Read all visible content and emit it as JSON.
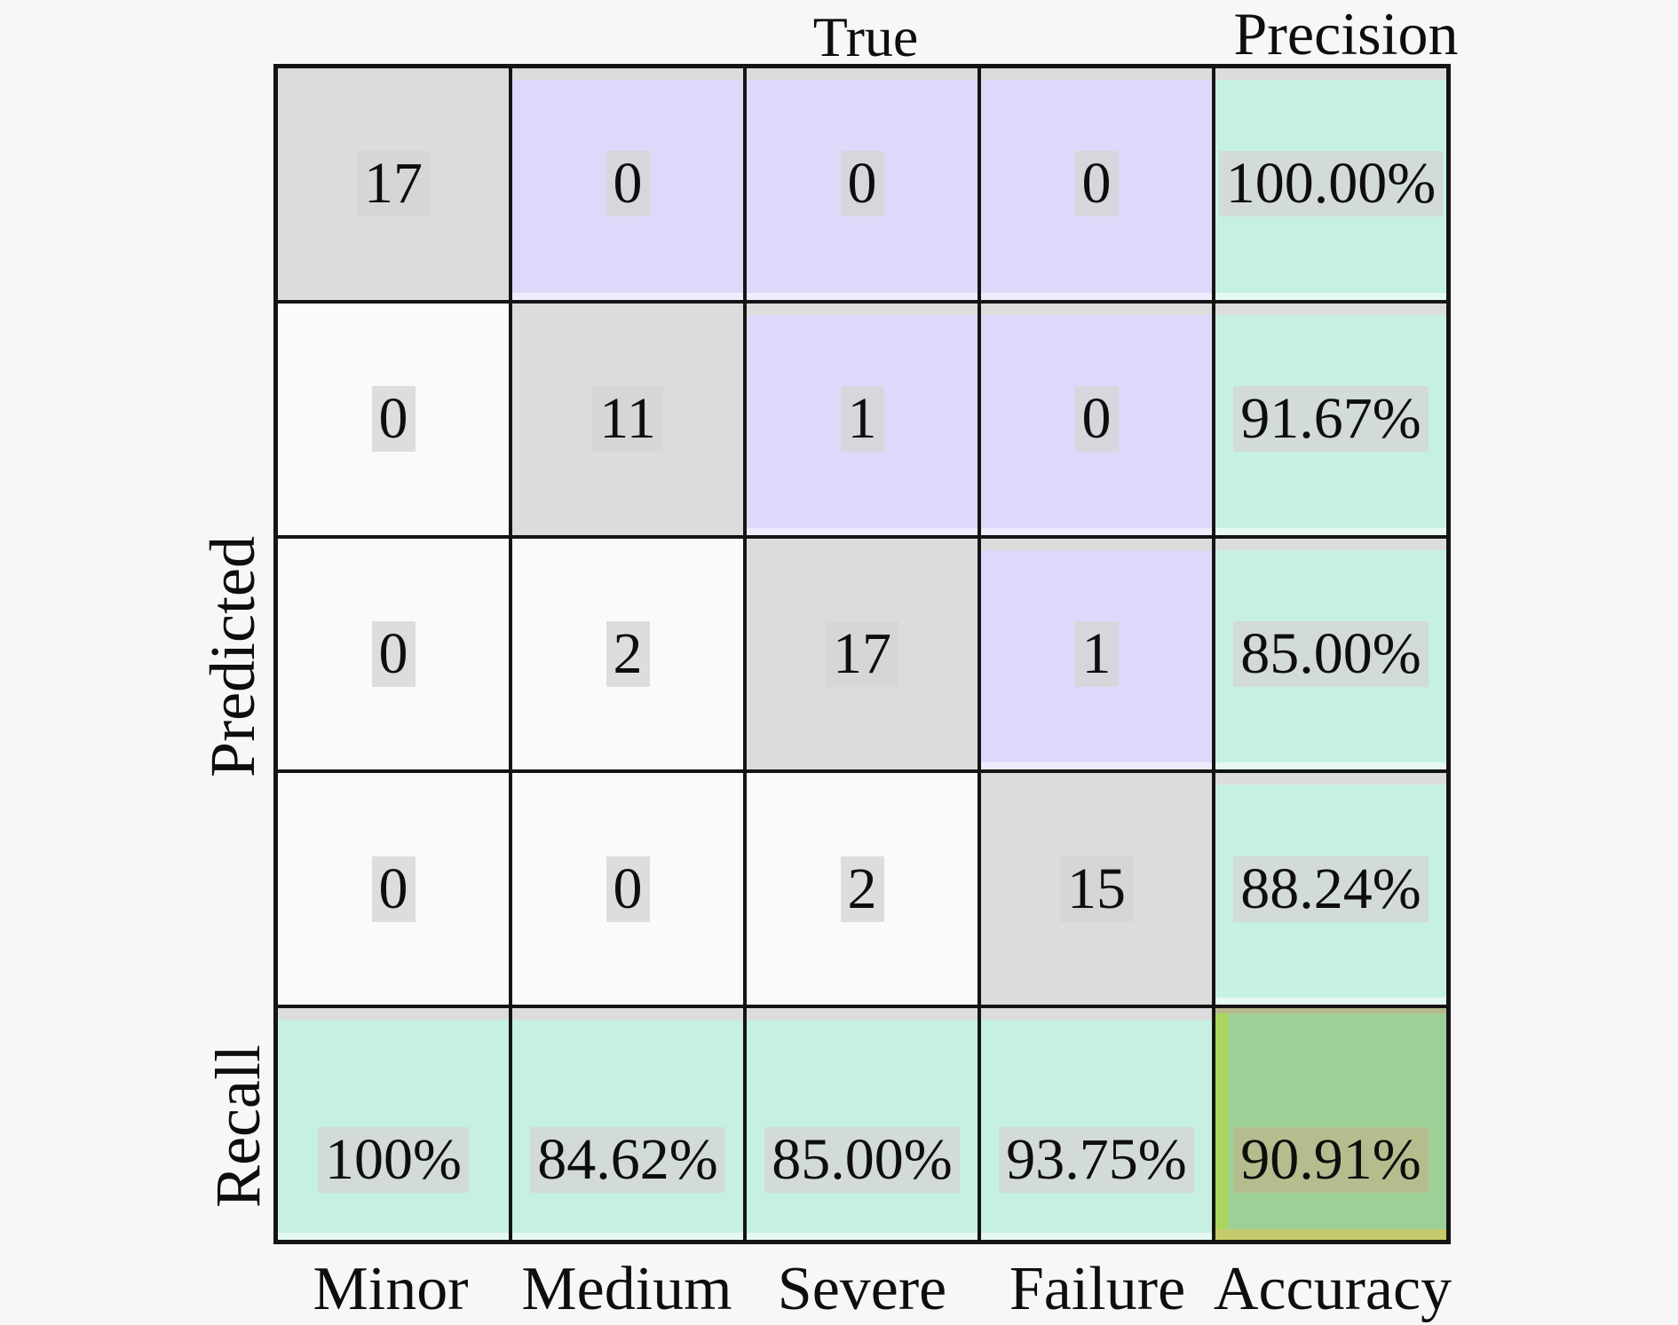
{
  "chart_data": {
    "type": "heatmap",
    "subtype": "confusion-matrix",
    "x_axis_label": "True",
    "y_axis_label": "Predicted",
    "classes": [
      "Minor",
      "Medium",
      "Severe",
      "Failure"
    ],
    "matrix": [
      [
        17,
        0,
        0,
        0
      ],
      [
        0,
        11,
        1,
        0
      ],
      [
        0,
        2,
        17,
        1
      ],
      [
        0,
        0,
        2,
        15
      ]
    ],
    "precision_label": "Precision",
    "precision": [
      "100.00%",
      "91.67%",
      "85.00%",
      "88.24%"
    ],
    "recall_label": "Recall",
    "recall": [
      "100%",
      "84.62%",
      "85.00%",
      "93.75%"
    ],
    "accuracy_label": "Accuracy",
    "accuracy": "90.91%",
    "legend_position": "none",
    "grid": true,
    "colors": {
      "background": "#f7f7f7",
      "diagonal_cell": "#dcdcdc",
      "upper_triangle_cell": "#ded9fa",
      "lower_triangle_cell": "#fafafa",
      "precision_recall_cell": "#c6f1e1",
      "accuracy_cell": "#9dd096",
      "accuracy_edge_strip": "#a9d75e",
      "accuracy_bottom_strip": "#c6ca6b",
      "grid_line": "#141414",
      "text": "#0e0e0e",
      "text_highlight_box": "#d5d5d5"
    }
  }
}
